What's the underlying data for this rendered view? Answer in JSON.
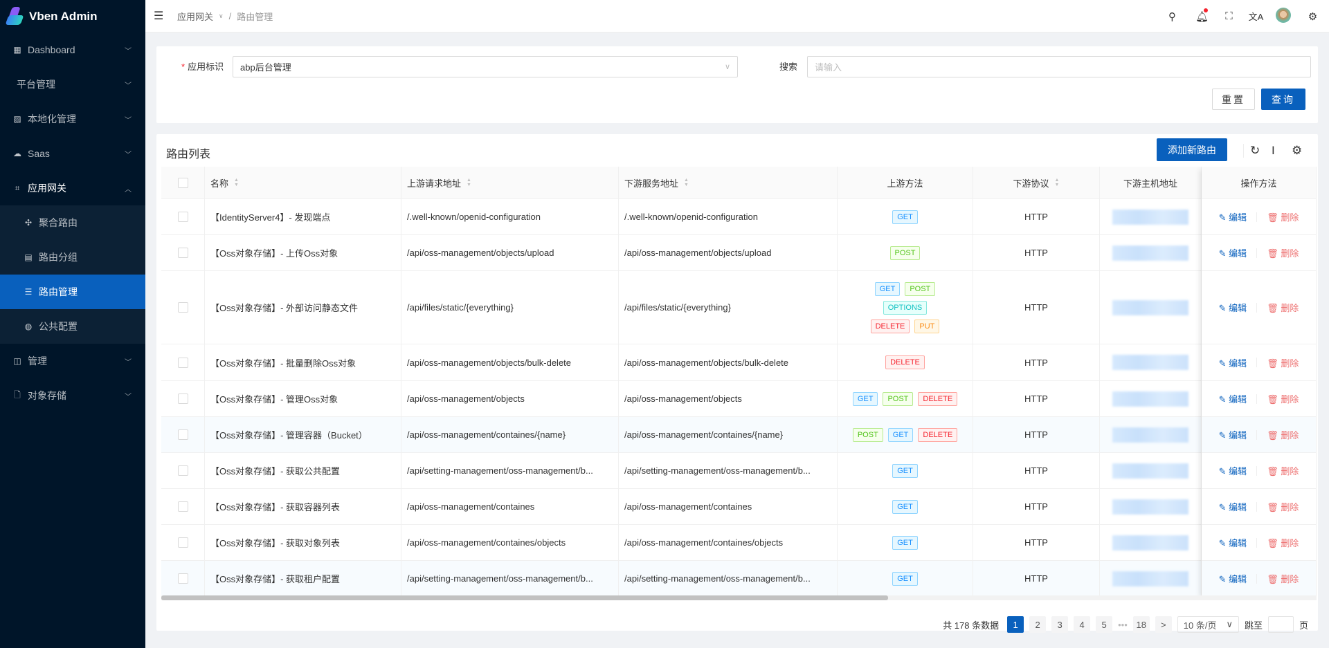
{
  "app": {
    "title": "Vben Admin"
  },
  "sidebar": {
    "items": [
      {
        "label": "Dashboard",
        "icon": "dashboard-icon"
      },
      {
        "label": "平台管理",
        "icon": ""
      },
      {
        "label": "本地化管理",
        "icon": "localization-icon"
      },
      {
        "label": "Saas",
        "icon": "cloud-icon"
      },
      {
        "label": "应用网关",
        "icon": "gateway-icon",
        "open": true,
        "children": [
          {
            "label": "聚合路由",
            "icon": "move-icon"
          },
          {
            "label": "路由分组",
            "icon": "group-icon"
          },
          {
            "label": "路由管理",
            "icon": "list-icon",
            "active": true
          },
          {
            "label": "公共配置",
            "icon": "globe-icon"
          }
        ]
      },
      {
        "label": "管理",
        "icon": "control-icon"
      },
      {
        "label": "对象存储",
        "icon": "file-icon"
      }
    ]
  },
  "header": {
    "breadcrumb": [
      "应用网关",
      "路由管理"
    ]
  },
  "form": {
    "app_label": "应用标识",
    "app_value": "abp后台管理",
    "search_label": "搜索",
    "search_placeholder": "请输入",
    "reset": "重置",
    "query": "查询"
  },
  "table": {
    "title": "路由列表",
    "add_button": "添加新路由",
    "columns": [
      "名称",
      "上游请求地址",
      "下游服务地址",
      "上游方法",
      "下游协议",
      "下游主机地址",
      "操作方法"
    ],
    "edit_label": "编辑",
    "delete_label": "删除",
    "rows": [
      {
        "name": "【IdentityServer4】- 发现端点",
        "up": "/.well-known/openid-configuration",
        "down": "/.well-known/openid-configuration",
        "methods": [
          "GET"
        ],
        "protocol": "HTTP"
      },
      {
        "name": "【Oss对象存储】- 上传Oss对象",
        "up": "/api/oss-management/objects/upload",
        "down": "/api/oss-management/objects/upload",
        "methods": [
          "POST"
        ],
        "protocol": "HTTP"
      },
      {
        "name": "【Oss对象存储】- 外部访问静态文件",
        "up": "/api/files/static/{everything}",
        "down": "/api/files/static/{everything}",
        "methods": [
          "GET",
          "POST",
          "OPTIONS",
          "DELETE",
          "PUT"
        ],
        "protocol": "HTTP"
      },
      {
        "name": "【Oss对象存储】- 批量删除Oss对象",
        "up": "/api/oss-management/objects/bulk-delete",
        "down": "/api/oss-management/objects/bulk-delete",
        "methods": [
          "DELETE"
        ],
        "protocol": "HTTP"
      },
      {
        "name": "【Oss对象存储】- 管理Oss对象",
        "up": "/api/oss-management/objects",
        "down": "/api/oss-management/objects",
        "methods": [
          "GET",
          "POST",
          "DELETE"
        ],
        "protocol": "HTTP"
      },
      {
        "name": "【Oss对象存储】- 管理容器（Bucket）",
        "up": "/api/oss-management/containes/{name}",
        "down": "/api/oss-management/containes/{name}",
        "methods": [
          "POST",
          "GET",
          "DELETE"
        ],
        "protocol": "HTTP"
      },
      {
        "name": "【Oss对象存储】- 获取公共配置",
        "up": "/api/setting-management/oss-management/b...",
        "down": "/api/setting-management/oss-management/b...",
        "methods": [
          "GET"
        ],
        "protocol": "HTTP"
      },
      {
        "name": "【Oss对象存储】- 获取容器列表",
        "up": "/api/oss-management/containes",
        "down": "/api/oss-management/containes",
        "methods": [
          "GET"
        ],
        "protocol": "HTTP"
      },
      {
        "name": "【Oss对象存储】- 获取对象列表",
        "up": "/api/oss-management/containes/objects",
        "down": "/api/oss-management/containes/objects",
        "methods": [
          "GET"
        ],
        "protocol": "HTTP"
      },
      {
        "name": "【Oss对象存储】- 获取租户配置",
        "up": "/api/setting-management/oss-management/b...",
        "down": "/api/setting-management/oss-management/b...",
        "methods": [
          "GET"
        ],
        "protocol": "HTTP"
      }
    ]
  },
  "method_colors": {
    "GET": {
      "bg": "#e6f7ff",
      "border": "#91d5ff",
      "text": "#1890ff"
    },
    "POST": {
      "bg": "#f6ffed",
      "border": "#b7eb8f",
      "text": "#52c41a"
    },
    "DELETE": {
      "bg": "#fff1f0",
      "border": "#ffa39e",
      "text": "#f5222d"
    },
    "OPTIONS": {
      "bg": "#e6fffb",
      "border": "#87e8de",
      "text": "#13c2c2"
    },
    "PUT": {
      "bg": "#fff7e6",
      "border": "#ffd591",
      "text": "#fa8c16"
    }
  },
  "pagination": {
    "total_text": "共 178 条数据",
    "pages": [
      "1",
      "2",
      "3",
      "4",
      "5",
      "•••",
      "18"
    ],
    "current": "1",
    "next": ">",
    "page_size": "10 条/页",
    "jump_label": "跳至",
    "page_suffix": "页"
  },
  "colors": {
    "primary": "#0960bd",
    "sidebar": "#001529"
  }
}
